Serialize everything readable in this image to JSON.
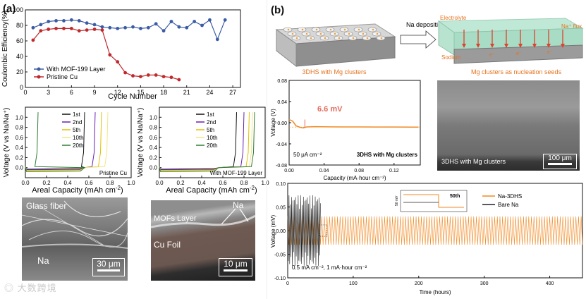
{
  "panel_labels": {
    "a": "(a)",
    "b": "(b)"
  },
  "watermark": "大数跨境",
  "chart_data": [
    {
      "id": "ce",
      "type": "line",
      "title": "",
      "xlabel": "Cycle Number",
      "ylabel": "Coulombic Efficiency(%)",
      "xlim": [
        0,
        28
      ],
      "ylim": [
        0,
        100
      ],
      "xticks": [
        "0",
        "3",
        "6",
        "9",
        "12",
        "15",
        "18",
        "21",
        "24",
        "27"
      ],
      "yticks": [
        "0",
        "20",
        "40",
        "60",
        "80",
        "100"
      ],
      "legend_position": "bottom-left",
      "series": [
        {
          "name": "With MOF-199 Layer",
          "color": "#3b5ba5",
          "x": [
            1,
            2,
            3,
            4,
            5,
            6,
            7,
            8,
            9,
            10,
            11,
            12,
            13,
            14,
            15,
            16,
            17,
            18,
            19,
            20,
            21,
            22,
            23,
            24,
            25,
            26
          ],
          "y": [
            77,
            81,
            85,
            86,
            86,
            87,
            86,
            83,
            81,
            78,
            77,
            76,
            77,
            78,
            76,
            77,
            82,
            73,
            85,
            78,
            77,
            85,
            80,
            87,
            62,
            87
          ]
        },
        {
          "name": "Pristine Cu",
          "color": "#c0282b",
          "x": [
            1,
            2,
            3,
            4,
            5,
            6,
            7,
            8,
            9,
            10,
            11,
            12,
            13,
            14,
            15,
            16,
            17,
            18,
            19,
            20
          ],
          "y": [
            61,
            73,
            75,
            76,
            76,
            76,
            73,
            74,
            75,
            74,
            42,
            33,
            19,
            15,
            14,
            16,
            16,
            14,
            13,
            10
          ]
        }
      ]
    },
    {
      "id": "volt_cu",
      "type": "line",
      "xlabel": "Areal Capacity (mAh cm",
      "xlabel_sup": "-2",
      "xlabel_end": ")",
      "ylabel": "Voltage (V vs Na/Na⁺)",
      "xlim": [
        0,
        1.0
      ],
      "ylim": [
        -0.2,
        1.2
      ],
      "xticks": [
        "0.0",
        "0.2",
        "0.4",
        "0.6",
        "0.8",
        "1.0"
      ],
      "yticks": [
        "0.0",
        "0.2",
        "0.4",
        "0.6",
        "0.8",
        "1.0"
      ],
      "annotation": "Pristine Cu",
      "series": [
        {
          "name": "1st",
          "color": "#111111",
          "end_x": 0.56
        },
        {
          "name": "2nd",
          "color": "#6a1fb0",
          "end_x": 0.66
        },
        {
          "name": "5th",
          "color": "#e0c000",
          "end_x": 0.72
        },
        {
          "name": "10th",
          "color": "#f4e48a",
          "end_x": 0.78
        },
        {
          "name": "20th",
          "color": "#2e7d32",
          "end_x": 0.12
        }
      ]
    },
    {
      "id": "volt_mof",
      "type": "line",
      "xlabel": "Areal Capacity (mAh cm",
      "xlabel_sup": "-2",
      "xlabel_end": ")",
      "ylabel": "Voltage (V vs Na/Na⁺)",
      "xlim": [
        0,
        1.0
      ],
      "ylim": [
        -0.2,
        1.2
      ],
      "xticks": [
        "0.0",
        "0.2",
        "0.4",
        "0.6",
        "0.8",
        "1.0"
      ],
      "yticks": [
        "0.0",
        "0.2",
        "0.4",
        "0.6",
        "0.8",
        "1.0"
      ],
      "annotation": "With MOF-199 Layer",
      "series": [
        {
          "name": "1st",
          "color": "#111111",
          "end_x": 0.73
        },
        {
          "name": "2nd",
          "color": "#6a1fb0",
          "end_x": 0.8
        },
        {
          "name": "5th",
          "color": "#e0c000",
          "end_x": 0.85
        },
        {
          "name": "10th",
          "color": "#f4e48a",
          "end_x": 0.88
        },
        {
          "name": "20th",
          "color": "#2e7d32",
          "end_x": 0.9
        }
      ]
    },
    {
      "id": "v_small",
      "type": "line",
      "xlabel": "Capacity (mA·hour cm⁻²)",
      "ylabel": "Voltage (V)",
      "xlim": [
        0,
        0.15
      ],
      "ylim": [
        -0.08,
        0.08
      ],
      "xticks": [
        "0.00",
        "0.04",
        "0.08",
        "0.12"
      ],
      "yticks": [
        "0.08",
        "0.04",
        "0.00",
        "-0.04",
        "-0.08"
      ],
      "annotation_value": "6.6 mV",
      "note_left": "50 μA cm⁻²",
      "note_right": "3DHS with Mg clusters",
      "series": [
        {
          "name": "Na deposition",
          "color": "#f08a24",
          "x": [
            0.0,
            0.004,
            0.008,
            0.012,
            0.016,
            0.02,
            0.03,
            0.045,
            0.06,
            0.08,
            0.1,
            0.12,
            0.14,
            0.148
          ],
          "y": [
            0.006,
            0.003,
            -0.006,
            -0.0085,
            -0.01,
            -0.008,
            -0.0075,
            -0.0078,
            -0.008,
            -0.008,
            -0.0081,
            -0.0082,
            -0.0083,
            -0.0083
          ]
        }
      ]
    },
    {
      "id": "v_long",
      "type": "line",
      "xlabel": "Time (hours)",
      "ylabel": "Voltage (mV)",
      "xlim": [
        0,
        450
      ],
      "ylim": [
        -0.1,
        0.1
      ],
      "xticks": [
        "0",
        "100",
        "200",
        "300",
        "400"
      ],
      "yticks": [
        "0.10",
        "0.05",
        "0.00",
        "-0.05",
        "-0.10"
      ],
      "note": "0.5 mA cm⁻², 1 mA·hour cm⁻²",
      "inset_label": "50th",
      "inset_ylabel": "50 mV",
      "series": [
        {
          "name": "Na-3DHS",
          "color": "#f08a24",
          "amplitude": 0.03,
          "x_end": 450
        },
        {
          "name": "Bare Na",
          "color": "#222222",
          "amplitude": 0.075,
          "x_end": 50
        }
      ]
    }
  ],
  "schematic": {
    "left_caption": "3DHS with Mg clusters",
    "arrow_label": "Na deposition",
    "electrolyte": "Electrolyte",
    "flux": "Na⁺ flux",
    "sodium": "Sodium",
    "electron": "e⁻",
    "seeds": "Mg clusters as nucleation seeds"
  },
  "sem_images": {
    "glass": {
      "label_top": "Glass fiber",
      "label_bottom": "Na",
      "scale": "30 μm"
    },
    "mof": {
      "label_layer": "MOFs Layer",
      "label_na": "Na",
      "label_cu": "Cu Foil",
      "scale": "10 μm"
    },
    "dhs": {
      "caption": "3DHS with Mg clusters",
      "scale": "100 μm"
    }
  }
}
